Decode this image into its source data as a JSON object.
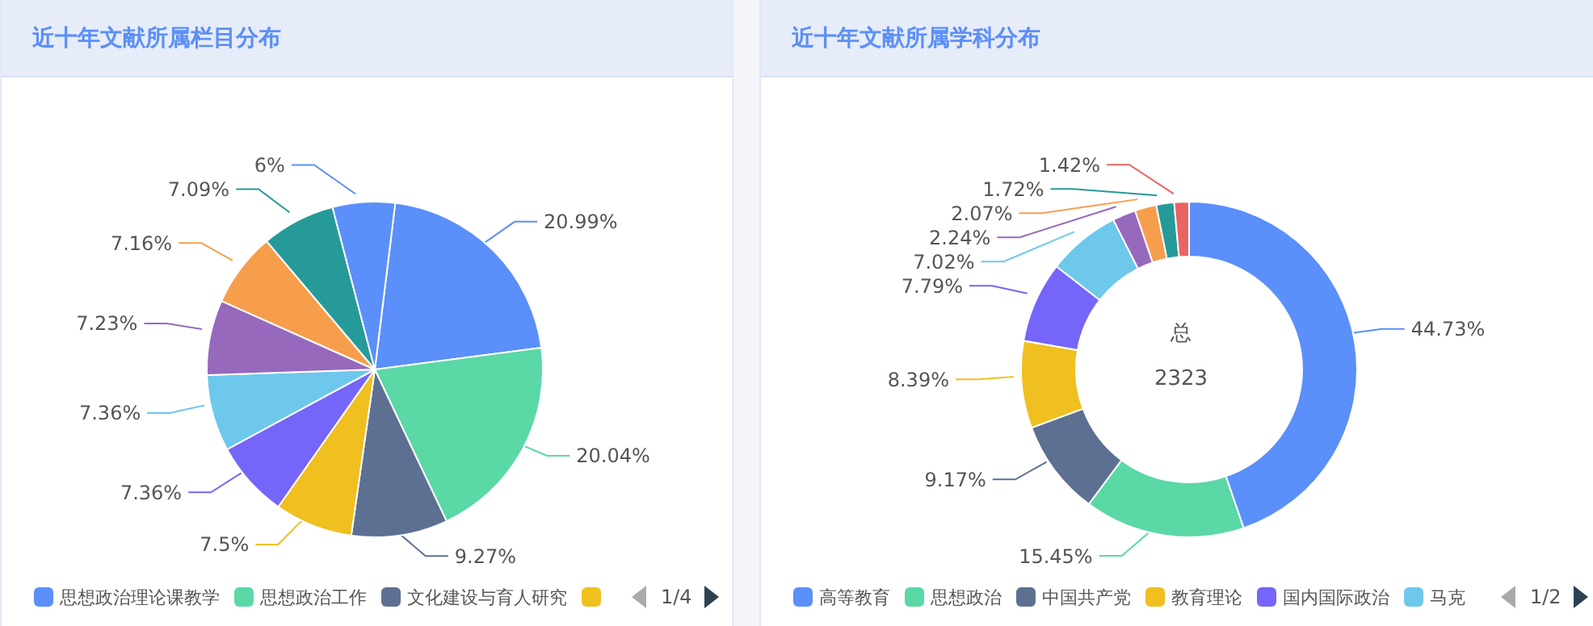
{
  "chart_data": [
    {
      "type": "pie",
      "title": "近十年文献所属栏目分布",
      "categories": [
        "思想政治理论课教学",
        "思想政治工作",
        "文化建设与育人研究",
        null,
        null,
        null,
        null,
        null,
        null,
        null
      ],
      "values": [
        20.99,
        20.04,
        9.27,
        7.5,
        7.36,
        7.36,
        7.23,
        7.16,
        7.09,
        6
      ],
      "value_labels": [
        "20.99%",
        "20.04%",
        "9.27%",
        "7.5%",
        "7.36%",
        "7.36%",
        "7.23%",
        "7.16%",
        "7.09%",
        "6%"
      ],
      "colors": [
        "#5b8ff9",
        "#5ad8a6",
        "#5d7092",
        "#f0bf20",
        "#7565f8",
        "#6dc8ec",
        "#9669bd",
        "#f79e4d",
        "#269a99",
        "#5b8ff9"
      ],
      "legend": "bottom",
      "annotations": [
        "1/4"
      ]
    },
    {
      "type": "donut",
      "title": "近十年文献所属学科分布",
      "categories": [
        "高等教育",
        "思想政治",
        "中国共产党",
        "教育理论",
        "国内国际政治",
        "马克",
        null,
        null,
        null,
        null
      ],
      "values": [
        44.73,
        15.45,
        9.17,
        8.39,
        7.79,
        7.02,
        2.24,
        2.07,
        1.72,
        1.42
      ],
      "value_labels": [
        "44.73%",
        "15.45%",
        "9.17%",
        "8.39%",
        "7.79%",
        "7.02%",
        "2.24%",
        "2.07%",
        "1.72%",
        "1.42%"
      ],
      "colors": [
        "#5b8ff9",
        "#5ad8a6",
        "#5d7092",
        "#f0bf20",
        "#7565f8",
        "#6dc8ec",
        "#9669bd",
        "#f79e4d",
        "#269a99",
        "#e96464"
      ],
      "legend": "bottom",
      "annotations": [
        "总",
        "2323",
        "1/2"
      ]
    }
  ]
}
